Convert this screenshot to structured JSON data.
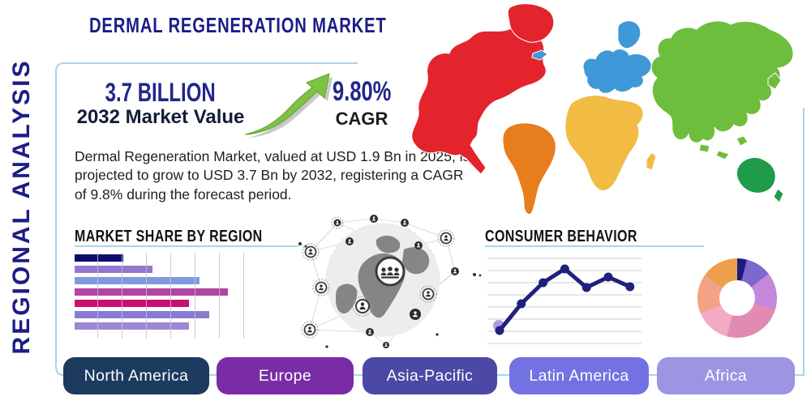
{
  "title": "DERMAL REGENERATION MARKET",
  "side_label": "REGIONAL ANALYSIS",
  "stats": {
    "market_value": "3.7 BILLION",
    "market_value_caption": "2032 Market Value",
    "cagr_value": "9.80%",
    "cagr_caption": "CAGR"
  },
  "description": "Dermal Regeneration Market, valued at USD 1.9 Bn in 2025, is projected to grow to USD 3.7 Bn by 2032, registering a CAGR of 9.8% during the forecast period.",
  "market_share": {
    "heading": "MARKET SHARE BY REGION"
  },
  "consumer_behavior": {
    "heading": "CONSUMER BEHAVIOR"
  },
  "region_buttons": [
    {
      "label": "North America",
      "color": "#1d3a5f"
    },
    {
      "label": "Europe",
      "color": "#7a2ba6"
    },
    {
      "label": "Asia-Pacific",
      "color": "#4b49a5"
    },
    {
      "label": "Latin America",
      "color": "#7372e2"
    },
    {
      "label": "Africa",
      "color": "#9b95e2"
    }
  ],
  "colors": {
    "accent_navy": "#1b1d87",
    "frame_blue": "#a5d6e7",
    "arrow_green": "#7dc243",
    "heading_black": "#111111"
  },
  "chart_data": [
    {
      "type": "bar",
      "title": "MARKET SHARE BY REGION",
      "orientation": "horizontal",
      "categories": [
        "",
        "",
        "",
        "",
        "",
        "",
        ""
      ],
      "values": [
        29,
        46,
        74,
        91,
        68,
        80,
        68
      ],
      "xlim": [
        0,
        100
      ],
      "grid": "vertical",
      "colors": [
        "#0c0c70",
        "#9477cf",
        "#7f9bdf",
        "#b244a4",
        "#cb0f70",
        "#8a7ad2",
        "#9d87d5"
      ]
    },
    {
      "type": "line",
      "title": "CONSUMER BEHAVIOR",
      "x": [
        1,
        2,
        3,
        4,
        5,
        6,
        7
      ],
      "values": [
        12,
        45,
        71,
        88,
        65,
        78,
        66
      ],
      "ylim": [
        0,
        100
      ],
      "grid": "horizontal",
      "line_color": "#20207d",
      "first_marker_halo": "#b29ce0"
    },
    {
      "type": "pie",
      "title": "Regional distribution donut",
      "slices": [
        {
          "color": "#1b1b80",
          "pct": 3.9
        },
        {
          "color": "#7e68cc",
          "pct": 10.6
        },
        {
          "color": "#c487d9",
          "pct": 15.3
        },
        {
          "color": "#e28ab3",
          "pct": 24.4
        },
        {
          "color": "#f2abc3",
          "pct": 14.5
        },
        {
          "color": "#f4a284",
          "pct": 16.1
        },
        {
          "color": "#eb9f4b",
          "pct": 15.2
        }
      ]
    },
    {
      "type": "map",
      "title": "World regions map",
      "regions": [
        {
          "name": "North America",
          "color": "#e3242d"
        },
        {
          "name": "South America",
          "color": "#e87d1e"
        },
        {
          "name": "Europe",
          "color": "#3f99d8"
        },
        {
          "name": "Africa",
          "color": "#f2bb43"
        },
        {
          "name": "Asia",
          "color": "#6ebe3d"
        },
        {
          "name": "Oceania",
          "color": "#1f9b4a"
        }
      ]
    }
  ]
}
